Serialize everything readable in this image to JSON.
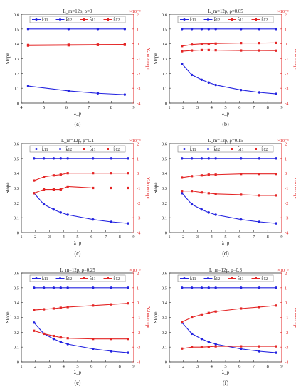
{
  "chart_data": [
    {
      "type": "line",
      "panel": "(a)",
      "title": "L_m=12p, ρ=0",
      "xlabel": "λ_p",
      "ylabel": "Slope",
      "y2label": "Y-intercept",
      "y2exp": "×10⁻³",
      "xlim": [
        4,
        9
      ],
      "xticks": [
        4,
        5,
        6,
        7,
        8,
        9
      ],
      "ylim": [
        0,
        0.6
      ],
      "y2lim": [
        -4,
        2
      ],
      "legend": [
        "k̂11",
        "k̂12",
        "b̂11",
        "b̂12"
      ],
      "series": [
        {
          "name": "k̂11",
          "axis": "left",
          "color": "#2323e0",
          "x": [
            4.3,
            6.1,
            7.4,
            8.6
          ],
          "values": [
            0.5,
            0.5,
            0.5,
            0.5
          ]
        },
        {
          "name": "k̂12",
          "axis": "left",
          "color": "#2323e0",
          "x": [
            4.3,
            6.1,
            7.4,
            8.6
          ],
          "values": [
            0.115,
            0.082,
            0.066,
            0.057
          ]
        },
        {
          "name": "b̂11",
          "axis": "right",
          "color": "#e42525",
          "x": [
            4.3,
            6.1,
            7.4,
            8.6
          ],
          "values": [
            -0.08,
            -0.06,
            -0.05,
            -0.04
          ]
        },
        {
          "name": "b̂12",
          "axis": "right",
          "color": "#e42525",
          "x": [
            4.3,
            6.1,
            7.4,
            8.6
          ],
          "values": [
            -0.12,
            -0.1,
            -0.08,
            -0.07
          ]
        }
      ]
    },
    {
      "type": "line",
      "panel": "(b)",
      "title": "L_m=12p, ρ=0.05",
      "xlabel": "λ_p",
      "ylabel": "Slope",
      "y2label": "Y-intercept",
      "y2exp": "×10⁻³",
      "xlim": [
        1,
        9
      ],
      "xticks": [
        1,
        2,
        3,
        4,
        5,
        6,
        7,
        8,
        9
      ],
      "ylim": [
        0,
        0.6
      ],
      "y2lim": [
        -4,
        2
      ],
      "legend": [
        "k̂11",
        "k̂12",
        "b̂11",
        "b̂12"
      ],
      "series": [
        {
          "name": "k̂11",
          "axis": "left",
          "color": "#2323e0",
          "x": [
            1.9,
            2.6,
            3.3,
            3.8,
            4.3,
            6.1,
            7.4,
            8.6
          ],
          "values": [
            0.5,
            0.5,
            0.5,
            0.5,
            0.5,
            0.5,
            0.5,
            0.5
          ]
        },
        {
          "name": "k̂12",
          "axis": "left",
          "color": "#2323e0",
          "x": [
            1.9,
            2.6,
            3.3,
            3.8,
            4.3,
            6.1,
            7.4,
            8.6
          ],
          "values": [
            0.265,
            0.19,
            0.157,
            0.138,
            0.122,
            0.088,
            0.072,
            0.062
          ]
        },
        {
          "name": "b̂11",
          "axis": "right",
          "color": "#e42525",
          "x": [
            1.9,
            2.6,
            3.3,
            3.8,
            4.3,
            6.1,
            7.4,
            8.6
          ],
          "values": [
            -0.15,
            -0.05,
            0.0,
            0.0,
            0.02,
            0.05,
            0.05,
            0.06
          ]
        },
        {
          "name": "b̂12",
          "axis": "right",
          "color": "#e42525",
          "x": [
            1.9,
            2.6,
            3.3,
            3.8,
            4.3,
            6.1,
            7.4,
            8.6
          ],
          "values": [
            -0.5,
            -0.45,
            -0.42,
            -0.42,
            -0.43,
            -0.45,
            -0.45,
            -0.46
          ]
        }
      ]
    },
    {
      "type": "line",
      "panel": "(c)",
      "title": "L_m=12p, ρ=0.1",
      "xlabel": "λ_p",
      "ylabel": "Slope",
      "y2label": "Y-intercept",
      "y2exp": "×10⁻³",
      "xlim": [
        1,
        9
      ],
      "xticks": [
        1,
        2,
        3,
        4,
        5,
        6,
        7,
        8,
        9
      ],
      "ylim": [
        0,
        0.6
      ],
      "y2lim": [
        -4,
        2
      ],
      "legend": [
        "k̂11",
        "k̂12",
        "b̂11",
        "b̂12"
      ],
      "series": [
        {
          "name": "k̂11",
          "axis": "left",
          "color": "#2323e0",
          "x": [
            1.9,
            2.6,
            3.3,
            3.8,
            4.3,
            6.1,
            7.4,
            8.6
          ],
          "values": [
            0.5,
            0.5,
            0.5,
            0.5,
            0.5,
            0.5,
            0.5,
            0.5
          ]
        },
        {
          "name": "k̂12",
          "axis": "left",
          "color": "#2323e0",
          "x": [
            1.9,
            2.6,
            3.3,
            3.8,
            4.3,
            6.1,
            7.4,
            8.6
          ],
          "values": [
            0.265,
            0.19,
            0.155,
            0.135,
            0.12,
            0.088,
            0.072,
            0.062
          ]
        },
        {
          "name": "b̂11",
          "axis": "right",
          "color": "#e42525",
          "x": [
            1.9,
            2.6,
            3.3,
            3.8,
            4.3,
            6.1,
            7.4,
            8.6
          ],
          "values": [
            -0.5,
            -0.25,
            -0.15,
            -0.1,
            0.0,
            0.0,
            0.0,
            0.0
          ]
        },
        {
          "name": "b̂12",
          "axis": "right",
          "color": "#e42525",
          "x": [
            1.9,
            2.6,
            3.3,
            3.8,
            4.3,
            6.1,
            7.4,
            8.6
          ],
          "values": [
            -1.35,
            -1.1,
            -1.1,
            -1.1,
            -0.9,
            -1.0,
            -1.0,
            -1.0
          ]
        }
      ]
    },
    {
      "type": "line",
      "panel": "(d)",
      "title": "L_m=12p, ρ=0.15",
      "xlabel": "λ_p",
      "ylabel": "Slope",
      "y2label": "Y-intercept",
      "y2exp": "×10⁻³",
      "xlim": [
        1,
        9
      ],
      "xticks": [
        1,
        2,
        3,
        4,
        5,
        6,
        7,
        8,
        9
      ],
      "ylim": [
        0,
        0.6
      ],
      "y2lim": [
        -4,
        2
      ],
      "legend": [
        "k̂11",
        "k̂12",
        "b̂11",
        "b̂12"
      ],
      "series": [
        {
          "name": "k̂11",
          "axis": "left",
          "color": "#2323e0",
          "x": [
            1.9,
            2.6,
            3.3,
            3.8,
            4.3,
            6.1,
            7.4,
            8.6
          ],
          "values": [
            0.5,
            0.5,
            0.5,
            0.5,
            0.5,
            0.5,
            0.5,
            0.5
          ]
        },
        {
          "name": "k̂12",
          "axis": "left",
          "color": "#2323e0",
          "x": [
            1.9,
            2.6,
            3.3,
            3.8,
            4.3,
            6.1,
            7.4,
            8.6
          ],
          "values": [
            0.265,
            0.19,
            0.155,
            0.135,
            0.12,
            0.088,
            0.072,
            0.062
          ]
        },
        {
          "name": "b̂11",
          "axis": "right",
          "color": "#e42525",
          "x": [
            1.9,
            2.6,
            3.3,
            3.8,
            4.3,
            6.1,
            7.4,
            8.6
          ],
          "values": [
            -0.3,
            -0.2,
            -0.15,
            -0.1,
            -0.1,
            -0.05,
            -0.05,
            -0.05
          ]
        },
        {
          "name": "b̂12",
          "axis": "right",
          "color": "#e42525",
          "x": [
            1.9,
            2.6,
            3.3,
            3.8,
            4.3,
            6.1,
            7.4,
            8.6
          ],
          "values": [
            -1.2,
            -1.2,
            -1.3,
            -1.35,
            -1.4,
            -1.45,
            -1.5,
            -1.5
          ]
        }
      ]
    },
    {
      "type": "line",
      "panel": "(e)",
      "title": "L_m=12p, ρ=0.25",
      "xlabel": "λ_p",
      "ylabel": "Slope",
      "y2label": "Y-intercept",
      "y2exp": "×10⁻³",
      "xlim": [
        1,
        9
      ],
      "xticks": [
        1,
        2,
        3,
        4,
        5,
        6,
        7,
        8,
        9
      ],
      "ylim": [
        0,
        0.6
      ],
      "y2lim": [
        -4,
        2
      ],
      "legend": [
        "k̂11",
        "k̂12",
        "b̂11",
        "b̂12"
      ],
      "series": [
        {
          "name": "k̂11",
          "axis": "left",
          "color": "#2323e0",
          "x": [
            1.9,
            2.6,
            3.3,
            3.8,
            4.3,
            6.1,
            7.4,
            8.6
          ],
          "values": [
            0.5,
            0.5,
            0.5,
            0.5,
            0.5,
            0.5,
            0.5,
            0.5
          ]
        },
        {
          "name": "k̂12",
          "axis": "left",
          "color": "#2323e0",
          "x": [
            1.9,
            2.6,
            3.3,
            3.8,
            4.3,
            6.1,
            7.4,
            8.6
          ],
          "values": [
            0.265,
            0.19,
            0.155,
            0.135,
            0.12,
            0.088,
            0.072,
            0.062
          ]
        },
        {
          "name": "b̂11",
          "axis": "right",
          "color": "#e42525",
          "x": [
            1.9,
            2.6,
            3.3,
            3.8,
            4.3,
            6.1,
            7.4,
            8.6
          ],
          "values": [
            -0.5,
            -0.45,
            -0.4,
            -0.35,
            -0.3,
            -0.2,
            -0.12,
            -0.05
          ]
        },
        {
          "name": "b̂12",
          "axis": "right",
          "color": "#e42525",
          "x": [
            1.9,
            2.6,
            3.3,
            3.8,
            4.3,
            6.1,
            7.4,
            8.6
          ],
          "values": [
            -1.9,
            -2.1,
            -2.25,
            -2.35,
            -2.4,
            -2.45,
            -2.45,
            -2.45
          ]
        }
      ]
    },
    {
      "type": "line",
      "panel": "(f)",
      "title": "L_m=12p, ρ=0.3",
      "xlabel": "λ_p",
      "ylabel": "Slope",
      "y2label": "Y-intercept",
      "y2exp": "×10⁻³",
      "xlim": [
        1,
        9
      ],
      "xticks": [
        1,
        2,
        3,
        4,
        5,
        6,
        7,
        8,
        9
      ],
      "ylim": [
        0,
        0.6
      ],
      "y2lim": [
        -4,
        2
      ],
      "legend": [
        "k̂11",
        "k̂12",
        "b̂11",
        "b̂12"
      ],
      "series": [
        {
          "name": "k̂11",
          "axis": "left",
          "color": "#2323e0",
          "x": [
            1.9,
            2.6,
            3.3,
            3.8,
            4.3,
            6.1,
            7.4,
            8.6
          ],
          "values": [
            0.5,
            0.5,
            0.5,
            0.5,
            0.5,
            0.5,
            0.5,
            0.5
          ]
        },
        {
          "name": "k̂12",
          "axis": "left",
          "color": "#2323e0",
          "x": [
            1.9,
            2.6,
            3.3,
            3.8,
            4.3,
            6.1,
            7.4,
            8.6
          ],
          "values": [
            0.265,
            0.19,
            0.155,
            0.135,
            0.12,
            0.088,
            0.072,
            0.062
          ]
        },
        {
          "name": "b̂11",
          "axis": "right",
          "color": "#e42525",
          "x": [
            1.9,
            2.6,
            3.3,
            3.8,
            4.3,
            6.1,
            7.4,
            8.6
          ],
          "values": [
            -1.3,
            -1.0,
            -0.8,
            -0.7,
            -0.6,
            -0.4,
            -0.3,
            -0.2
          ]
        },
        {
          "name": "b̂12",
          "axis": "right",
          "color": "#e42525",
          "x": [
            1.9,
            2.6,
            3.3,
            3.8,
            4.3,
            6.1,
            7.4,
            8.6
          ],
          "values": [
            -3.1,
            -3.0,
            -3.0,
            -2.98,
            -2.95,
            -2.95,
            -2.95,
            -2.95
          ]
        }
      ]
    }
  ]
}
